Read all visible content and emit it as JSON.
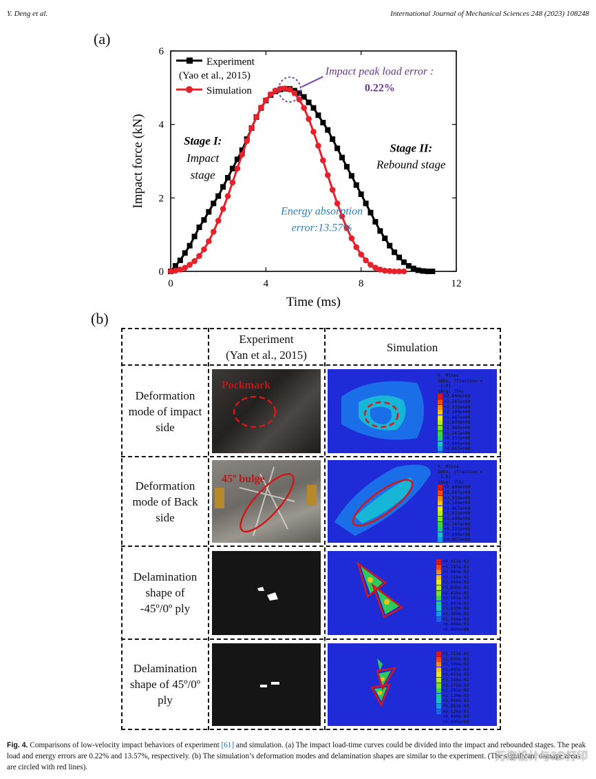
{
  "header": {
    "left": "Y. Deng et al.",
    "right": "International Journal of Mechanical Sciences 248 (2023) 108248"
  },
  "panel_a_label": "(a)",
  "panel_b_label": "(b)",
  "chart_data": {
    "type": "line",
    "xlabel": "Time (ms)",
    "ylabel": "Impact force (kN)",
    "xlim": [
      0,
      12
    ],
    "ylim": [
      0,
      6
    ],
    "xticks": [
      0,
      4,
      8,
      12
    ],
    "yticks": [
      0,
      2,
      4,
      6
    ],
    "series": [
      {
        "name": "Experiment",
        "name_line2": "(Yao et al., 2015)",
        "color": "#000000",
        "marker": "square",
        "x": [
          0,
          0.2,
          0.4,
          0.6,
          0.8,
          1.0,
          1.2,
          1.4,
          1.6,
          1.8,
          2.0,
          2.2,
          2.4,
          2.6,
          2.8,
          3.0,
          3.2,
          3.4,
          3.6,
          3.8,
          4.0,
          4.2,
          4.4,
          4.6,
          4.8,
          5.0,
          5.2,
          5.4,
          5.6,
          5.8,
          6.0,
          6.2,
          6.4,
          6.6,
          6.8,
          7.0,
          7.2,
          7.4,
          7.6,
          7.8,
          8.0,
          8.2,
          8.4,
          8.6,
          8.8,
          9.0,
          9.2,
          9.4,
          9.6,
          9.8,
          10.0,
          10.2,
          10.4,
          10.6,
          10.8,
          11.0
        ],
        "y": [
          0,
          0.15,
          0.3,
          0.5,
          0.7,
          0.95,
          1.2,
          1.4,
          1.62,
          1.85,
          2.05,
          2.3,
          2.55,
          2.8,
          3.05,
          3.3,
          3.6,
          3.9,
          4.2,
          4.45,
          4.65,
          4.8,
          4.9,
          4.95,
          4.97,
          4.97,
          4.92,
          4.85,
          4.75,
          4.6,
          4.45,
          4.25,
          4.05,
          3.85,
          3.6,
          3.35,
          3.1,
          2.85,
          2.6,
          2.35,
          2.1,
          1.85,
          1.6,
          1.35,
          1.1,
          0.9,
          0.7,
          0.52,
          0.38,
          0.25,
          0.15,
          0.08,
          0.03,
          0.01,
          0,
          0
        ]
      },
      {
        "name": "Simulation",
        "color": "#e8202a",
        "marker": "circle",
        "x": [
          0,
          0.2,
          0.4,
          0.6,
          0.8,
          1.0,
          1.2,
          1.4,
          1.6,
          1.8,
          2.0,
          2.2,
          2.4,
          2.6,
          2.8,
          3.0,
          3.2,
          3.4,
          3.6,
          3.8,
          4.0,
          4.2,
          4.4,
          4.6,
          4.8,
          5.0,
          5.2,
          5.4,
          5.6,
          5.8,
          6.0,
          6.2,
          6.4,
          6.6,
          6.8,
          7.0,
          7.2,
          7.4,
          7.6,
          7.8,
          8.0,
          8.2,
          8.4,
          8.6,
          8.8,
          9.0,
          9.2,
          9.4,
          9.6,
          9.8
        ],
        "y": [
          0,
          0.02,
          0.05,
          0.1,
          0.18,
          0.28,
          0.42,
          0.6,
          0.82,
          1.08,
          1.38,
          1.7,
          2.05,
          2.42,
          2.8,
          3.18,
          3.55,
          3.9,
          4.2,
          4.46,
          4.66,
          4.82,
          4.92,
          4.97,
          4.98,
          4.95,
          4.85,
          4.68,
          4.45,
          4.15,
          3.8,
          3.42,
          3.02,
          2.62,
          2.22,
          1.85,
          1.5,
          1.18,
          0.9,
          0.66,
          0.46,
          0.3,
          0.18,
          0.1,
          0.05,
          0.02,
          0.01,
          0,
          0,
          0
        ]
      }
    ],
    "annotations": {
      "peak_error_label": "Impact peak load error :",
      "peak_error_value": "0.22%",
      "stage1_title": "Stage I:",
      "stage1_line1": "Impact",
      "stage1_line2": "stage",
      "stage2_title": "Stage II:",
      "stage2_desc": "Rebound stage",
      "energy_line1": "Energy absorption",
      "energy_line2": "error:13.57%"
    }
  },
  "table": {
    "col_experiment": "Experiment",
    "col_experiment_ref": "(Yan et al., 2015)",
    "col_simulation": "Simulation",
    "rows": [
      {
        "label": [
          "Deformation",
          "mode of impact",
          "side"
        ],
        "photo_tag": "Pockmark"
      },
      {
        "label": [
          "Deformation",
          "mode of Back",
          "side"
        ],
        "photo_tag": "45º bulge"
      },
      {
        "label": [
          "Delamination",
          "shape of",
          "-45º/0º ply"
        ]
      },
      {
        "label": [
          "Delamination",
          "shape of  45º/0º",
          "ply"
        ]
      }
    ],
    "legend_mises": {
      "title": [
        "S, Mises",
        "SNEG, (fraction = -1.0)",
        "(Avg: 75%)"
      ],
      "values": [
        "+2.800e+09",
        "+2.567e+09",
        "+2.333e+09",
        "+2.100e+09",
        "+1.867e+09",
        "+1.633e+09",
        "+1.400e+09",
        "+1.167e+09",
        "+9.333e+08",
        "+7.000e+08",
        "+4.667e+08",
        "+2.333e+08",
        "+0.000e+00"
      ]
    },
    "legend_delam1": [
      "+4.012e-02",
      "+3.747e-02",
      "+3.483e-02",
      "+3.219e-02",
      "+2.954e-02",
      "+2.690e-02",
      "+2.426e-02",
      "+2.161e-02",
      "+1.897e-02",
      "+1.633e-02",
      "+1.369e-02",
      "+1.104e-02",
      "+8.400e-03",
      "+0.000e+00"
    ],
    "legend_delam2": [
      "+1.711e-02",
      "+1.639e-02",
      "+1.566e-02",
      "+1.493e-02",
      "+1.421e-02",
      "+1.348e-02",
      "+1.276e-02",
      "+1.203e-02",
      "+1.130e-02",
      "+1.058e-02",
      "+9.852e-03",
      "+9.126e-03",
      "+8.400e-03",
      "+0.000e+00"
    ],
    "colorbar": [
      "#d81a1a",
      "#f04a10",
      "#f98a12",
      "#f5c012",
      "#e8e81a",
      "#b8ea1e",
      "#7ee02a",
      "#3ed44a",
      "#1ecb86",
      "#16c4c4",
      "#1a96e6",
      "#1f60e8",
      "#1f2bd6"
    ]
  },
  "caption": {
    "fig": "Fig. 4.",
    "text1": " Comparisons of low-velocity impact behaviors of experiment ",
    "ref": "[61]",
    "text2": " and simulation. (a) The impact load-time curves could be divided into the impact and rebounded stages. The peak load and energy errors are 0.22% and 13.57%, respectively. (b) The simulation’s deformation modes and delamination shapes are similar to the experiment. (The significant damage areas are circled with red lines)."
  },
  "watermark": "万海设计与3D打印"
}
